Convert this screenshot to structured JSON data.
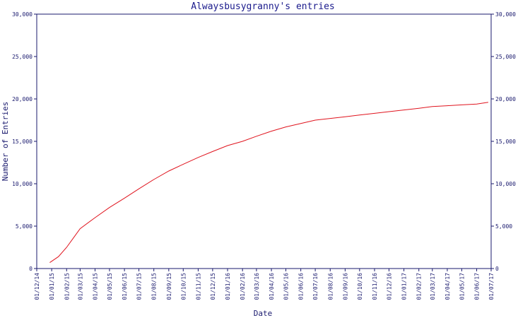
{
  "chart_data": {
    "type": "line",
    "title": "Alwaysbusygranny's entries",
    "xlabel": "Date",
    "ylabel": "Number of Entries",
    "ylim": [
      0,
      30000
    ],
    "y_ticks": [
      "0",
      "5,000",
      "10,000",
      "15,000",
      "20,000",
      "25,000",
      "30,000"
    ],
    "y_tick_values": [
      0,
      5000,
      10000,
      15000,
      20000,
      25000,
      30000
    ],
    "x_ticks": [
      "01/12/14",
      "01/01/15",
      "01/02/15",
      "01/03/15",
      "01/04/15",
      "01/05/15",
      "01/06/15",
      "01/07/15",
      "01/08/15",
      "01/09/15",
      "01/10/15",
      "01/11/15",
      "01/12/15",
      "01/01/16",
      "01/02/16",
      "01/03/16",
      "01/04/16",
      "01/05/16",
      "01/06/16",
      "01/07/16",
      "01/08/16",
      "01/09/16",
      "01/10/16",
      "01/11/16",
      "01/12/16",
      "01/01/17",
      "01/02/17",
      "01/03/17",
      "01/04/17",
      "01/05/17",
      "01/06/17",
      "01/07/17"
    ],
    "grid": false,
    "colors": {
      "line": "#e0141e",
      "axis": "#1a1a6e",
      "title": "#1a1a8c"
    },
    "x": [
      "2014-12-28",
      "2015-01-15",
      "2015-02-01",
      "2015-02-15",
      "2015-03-01",
      "2015-04-01",
      "2015-05-01",
      "2015-06-01",
      "2015-07-01",
      "2015-08-01",
      "2015-09-01",
      "2015-10-01",
      "2015-11-01",
      "2015-12-01",
      "2016-01-01",
      "2016-02-01",
      "2016-03-01",
      "2016-04-01",
      "2016-05-01",
      "2016-06-01",
      "2016-07-01",
      "2016-08-01",
      "2016-09-01",
      "2016-10-01",
      "2016-11-01",
      "2016-12-01",
      "2017-01-01",
      "2017-02-01",
      "2017-03-01",
      "2017-04-01",
      "2017-05-01",
      "2017-06-01",
      "2017-06-25"
    ],
    "series": [
      {
        "values": [
          700,
          1400,
          2500,
          3600,
          4700,
          6000,
          7200,
          8300,
          9400,
          10500,
          11500,
          12300,
          13100,
          13800,
          14500,
          15000,
          15600,
          16200,
          16700,
          17100,
          17500,
          17700,
          17900,
          18100,
          18300,
          18500,
          18700,
          18900,
          19100,
          19200,
          19300,
          19400,
          19600
        ]
      }
    ]
  }
}
